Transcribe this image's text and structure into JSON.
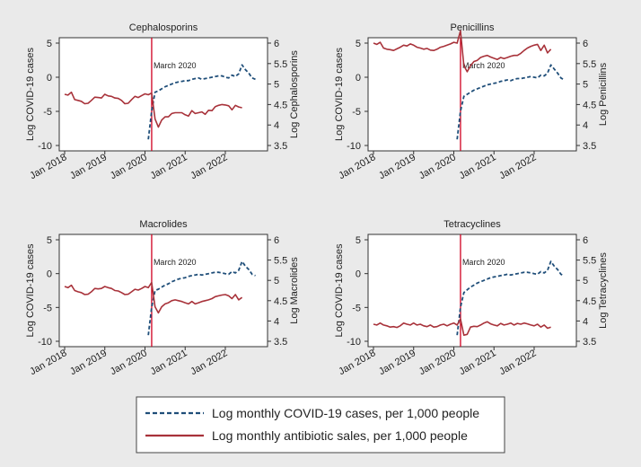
{
  "figure": {
    "background": "#eaeaea",
    "panel_bg": "#ffffff"
  },
  "colors": {
    "covid": "#1f4e79",
    "sales": "#a8323a",
    "vline": "#d00020"
  },
  "legend": {
    "covid_label": "Log monthly COVID-19 cases, per 1,000 people",
    "sales_label": "Log monthly antibiotic sales, per 1,000 people"
  },
  "chart_data": [
    {
      "type": "line",
      "title": "Cephalosporins",
      "ylabel_left": "Log COVID-19 cases",
      "ylabel_right": "Log Cephalosporins",
      "x_ticks": [
        "Jan 2018",
        "Jan 2019",
        "Jan 2020",
        "Jan 2021",
        "Jan 2022"
      ],
      "y_left": {
        "range": [
          -10,
          5
        ],
        "ticks": [
          -10,
          -5,
          0,
          5
        ]
      },
      "y_right": {
        "range": [
          3.5,
          6
        ],
        "ticks": [
          "3.5",
          "4",
          "4.5",
          "5",
          "5.5",
          "6"
        ]
      },
      "event": {
        "label": "March 2020",
        "x": 26
      },
      "series": [
        {
          "name": "covid",
          "axis": "left",
          "style": "dashed",
          "start": 25,
          "values": [
            -9.1,
            -5,
            -2.2,
            -2.0,
            -1.7,
            -1.4,
            -1.2,
            -1.0,
            -0.8,
            -0.7,
            -0.6,
            -0.5,
            -0.5,
            -0.3,
            -0.2,
            -0.1,
            -0.3,
            -0.2,
            -0.1,
            0,
            0.1,
            0.2,
            0.2,
            0,
            -0.1,
            0.3,
            0.1,
            0.5,
            1.8,
            1.1,
            0.6,
            -0.1,
            -0.3
          ]
        },
        {
          "name": "sales",
          "axis": "right",
          "style": "solid",
          "start": 0,
          "values": [
            4.75,
            4.73,
            4.8,
            4.62,
            4.6,
            4.58,
            4.52,
            4.53,
            4.6,
            4.68,
            4.67,
            4.66,
            4.75,
            4.71,
            4.7,
            4.66,
            4.65,
            4.6,
            4.52,
            4.53,
            4.62,
            4.7,
            4.67,
            4.72,
            4.76,
            4.74,
            4.78,
            4.15,
            3.95,
            4.12,
            4.2,
            4.2,
            4.28,
            4.3,
            4.3,
            4.3,
            4.25,
            4.22,
            4.35,
            4.28,
            4.3,
            4.32,
            4.26,
            4.36,
            4.35,
            4.45,
            4.48,
            4.5,
            4.49,
            4.47,
            4.37,
            4.48,
            4.44,
            4.42
          ]
        }
      ]
    },
    {
      "type": "line",
      "title": "Penicillins",
      "ylabel_left": "Log COVID-19 cases",
      "ylabel_right": "Log Penicillins",
      "x_ticks": [
        "Jan 2018",
        "Jan 2019",
        "Jan 2020",
        "Jan 2021",
        "Jan 2022"
      ],
      "y_left": {
        "range": [
          -10,
          5
        ],
        "ticks": [
          -10,
          -5,
          0,
          5
        ]
      },
      "y_right": {
        "range": [
          3.5,
          6
        ],
        "ticks": [
          "3.5",
          "4",
          "4.5",
          "5",
          "5.5",
          "6"
        ]
      },
      "event": {
        "label": "March 2020",
        "x": 26
      },
      "series": [
        {
          "name": "covid",
          "axis": "left",
          "style": "dashed",
          "start": 25,
          "values": [
            -9.1,
            -5,
            -2.8,
            -2.5,
            -2.2,
            -1.9,
            -1.7,
            -1.5,
            -1.3,
            -1.1,
            -1.0,
            -0.9,
            -0.8,
            -0.6,
            -0.5,
            -0.4,
            -0.5,
            -0.3,
            -0.2,
            -0.2,
            -0.1,
            0,
            0.1,
            0,
            -0.1,
            0.3,
            0.2,
            0.6,
            1.8,
            1.2,
            0.6,
            -0.1,
            -0.4
          ]
        },
        {
          "name": "sales",
          "axis": "right",
          "style": "solid",
          "start": 0,
          "values": [
            6.0,
            5.97,
            6.02,
            5.88,
            5.85,
            5.84,
            5.82,
            5.86,
            5.9,
            5.95,
            5.93,
            5.98,
            5.95,
            5.9,
            5.88,
            5.85,
            5.87,
            5.83,
            5.82,
            5.85,
            5.9,
            5.92,
            5.95,
            5.98,
            6.02,
            6.0,
            6.3,
            5.45,
            5.3,
            5.45,
            5.55,
            5.58,
            5.65,
            5.68,
            5.7,
            5.66,
            5.63,
            5.6,
            5.65,
            5.62,
            5.65,
            5.68,
            5.7,
            5.7,
            5.75,
            5.82,
            5.88,
            5.92,
            5.95,
            5.97,
            5.82,
            5.95,
            5.76,
            5.85
          ]
        }
      ]
    },
    {
      "type": "line",
      "title": "Macrolides",
      "ylabel_left": "Log COVID-19 cases",
      "ylabel_right": "Log Macrolides",
      "x_ticks": [
        "Jan 2018",
        "Jan 2019",
        "Jan 2020",
        "Jan 2021",
        "Jan 2022"
      ],
      "y_left": {
        "range": [
          -10,
          5
        ],
        "ticks": [
          -10,
          -5,
          0,
          5
        ]
      },
      "y_right": {
        "range": [
          3.5,
          6
        ],
        "ticks": [
          "3.5",
          "4",
          "4.5",
          "5",
          "5.5",
          "6"
        ]
      },
      "event": {
        "label": "March 2020",
        "x": 26
      },
      "series": [
        {
          "name": "covid",
          "axis": "left",
          "style": "dashed",
          "start": 25,
          "values": [
            -9.1,
            -5,
            -2.5,
            -2.3,
            -2.0,
            -1.7,
            -1.5,
            -1.2,
            -1.0,
            -0.8,
            -0.7,
            -0.6,
            -0.4,
            -0.3,
            -0.2,
            -0.1,
            -0.2,
            -0.1,
            0,
            0.1,
            0.2,
            0.2,
            0.1,
            0,
            -0.1,
            0.3,
            0.1,
            0.5,
            1.8,
            1.1,
            0.6,
            -0.1,
            -0.3
          ]
        },
        {
          "name": "sales",
          "axis": "right",
          "style": "solid",
          "start": 0,
          "values": [
            4.85,
            4.82,
            4.88,
            4.75,
            4.72,
            4.7,
            4.65,
            4.66,
            4.72,
            4.8,
            4.79,
            4.8,
            4.85,
            4.82,
            4.8,
            4.75,
            4.74,
            4.7,
            4.65,
            4.66,
            4.72,
            4.78,
            4.76,
            4.8,
            4.85,
            4.82,
            4.95,
            4.35,
            4.2,
            4.35,
            4.42,
            4.45,
            4.5,
            4.52,
            4.5,
            4.48,
            4.45,
            4.42,
            4.48,
            4.42,
            4.45,
            4.48,
            4.5,
            4.52,
            4.55,
            4.6,
            4.62,
            4.64,
            4.65,
            4.62,
            4.55,
            4.65,
            4.52,
            4.58
          ]
        }
      ]
    },
    {
      "type": "line",
      "title": "Tetracyclines",
      "ylabel_left": "Log COVID-19 cases",
      "ylabel_right": "Log Tetracyclines",
      "x_ticks": [
        "Jan 2018",
        "Jan 2019",
        "Jan 2020",
        "Jan 2021",
        "Jan 2022"
      ],
      "y_left": {
        "range": [
          -10,
          5
        ],
        "ticks": [
          -10,
          -5,
          0,
          5
        ]
      },
      "y_right": {
        "range": [
          3.5,
          6
        ],
        "ticks": [
          "3.5",
          "4",
          "4.5",
          "5",
          "5.5",
          "6"
        ]
      },
      "event": {
        "label": "March 2020",
        "x": 26
      },
      "series": [
        {
          "name": "covid",
          "axis": "left",
          "style": "dashed",
          "start": 25,
          "values": [
            -9.1,
            -5,
            -2.8,
            -2.4,
            -2.0,
            -1.7,
            -1.4,
            -1.2,
            -1.0,
            -0.8,
            -0.6,
            -0.5,
            -0.4,
            -0.3,
            -0.2,
            -0.1,
            -0.2,
            -0.1,
            0,
            0.1,
            0.2,
            0.2,
            0.1,
            0,
            -0.1,
            0.3,
            0.1,
            0.5,
            1.8,
            1.1,
            0.6,
            -0.1,
            -0.3
          ]
        },
        {
          "name": "sales",
          "axis": "right",
          "style": "solid",
          "start": 0,
          "values": [
            3.92,
            3.9,
            3.95,
            3.9,
            3.88,
            3.85,
            3.86,
            3.84,
            3.88,
            3.95,
            3.92,
            3.9,
            3.95,
            3.9,
            3.92,
            3.88,
            3.86,
            3.9,
            3.85,
            3.86,
            3.9,
            3.92,
            3.88,
            3.92,
            3.95,
            3.9,
            4.05,
            3.65,
            3.67,
            3.85,
            3.87,
            3.86,
            3.9,
            3.95,
            3.98,
            3.93,
            3.9,
            3.88,
            3.94,
            3.9,
            3.92,
            3.95,
            3.9,
            3.94,
            3.92,
            3.95,
            3.93,
            3.9,
            3.88,
            3.92,
            3.85,
            3.9,
            3.82,
            3.85
          ]
        }
      ]
    }
  ]
}
